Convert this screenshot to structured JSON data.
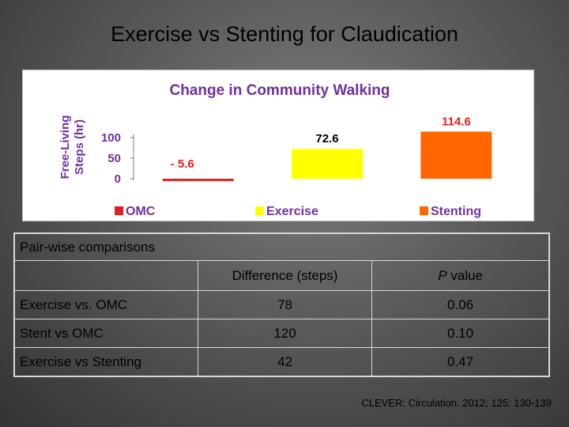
{
  "slide": {
    "title": "Exercise vs Stenting for Claudication",
    "citation": "CLEVER: Circulation. 2012; 125: 130-139"
  },
  "chart_data": {
    "type": "bar",
    "title": "Change in Community Walking",
    "ylabel": "Free-Living Steps (hr)",
    "categories": [
      "OMC",
      "Exercise",
      "Stenting"
    ],
    "values": [
      -5.6,
      72.6,
      114.6
    ],
    "value_labels": [
      "- 5.6",
      "72.6",
      "114.6"
    ],
    "ylim": [
      0,
      100
    ],
    "yticks": [
      0,
      50,
      100
    ],
    "grid": false,
    "legend": "bottom",
    "colors": [
      "#e21f1f",
      "#ffff00",
      "#ff6600"
    ],
    "label_colors": [
      "#e21f1f",
      "#000000",
      "#e21f1f"
    ]
  },
  "comparisons": {
    "caption": "Pair-wise comparisons",
    "headers": [
      "",
      "Difference (steps)",
      "P value"
    ],
    "rows": [
      [
        "Exercise vs. OMC",
        "78",
        "0.06"
      ],
      [
        "Stent vs OMC",
        "120",
        "0.10"
      ],
      [
        "Exercise vs Stenting",
        "42",
        "0.47"
      ]
    ]
  }
}
